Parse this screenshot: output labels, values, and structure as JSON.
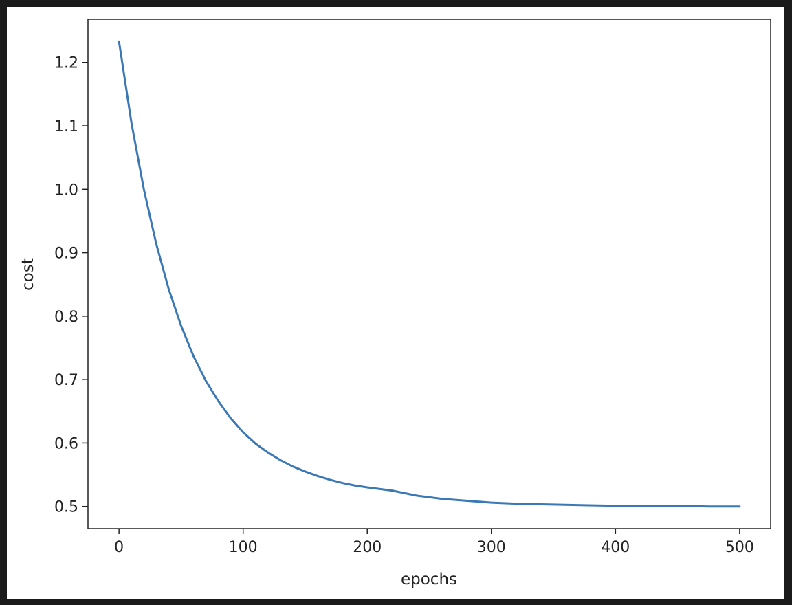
{
  "chart_data": {
    "type": "line",
    "title": "",
    "xlabel": "epochs",
    "ylabel": "cost",
    "xlim": [
      -25,
      525
    ],
    "ylim": [
      0.465,
      1.268
    ],
    "xticks": [
      0,
      100,
      200,
      300,
      400,
      500
    ],
    "xtick_labels": [
      "0",
      "100",
      "200",
      "300",
      "400",
      "500"
    ],
    "yticks": [
      0.5,
      0.6,
      0.7,
      0.8,
      0.9,
      1.0,
      1.1,
      1.2
    ],
    "ytick_labels": [
      "0.5",
      "0.6",
      "0.7",
      "0.8",
      "0.9",
      "1.0",
      "1.1",
      "1.2"
    ],
    "grid": false,
    "legend": "none",
    "series": [
      {
        "color": "#3a78b6",
        "x": [
          0,
          10,
          20,
          30,
          40,
          50,
          60,
          70,
          80,
          90,
          100,
          110,
          120,
          130,
          140,
          150,
          160,
          170,
          180,
          190,
          200,
          220,
          240,
          260,
          280,
          300,
          325,
          350,
          375,
          400,
          425,
          450,
          475,
          500
        ],
        "y": [
          1.233,
          1.105,
          1.0,
          0.914,
          0.843,
          0.785,
          0.737,
          0.698,
          0.666,
          0.639,
          0.617,
          0.599,
          0.585,
          0.573,
          0.563,
          0.555,
          0.548,
          0.542,
          0.537,
          0.533,
          0.53,
          0.525,
          0.517,
          0.512,
          0.509,
          0.506,
          0.504,
          0.503,
          0.502,
          0.501,
          0.501,
          0.501,
          0.5,
          0.5
        ]
      }
    ]
  }
}
